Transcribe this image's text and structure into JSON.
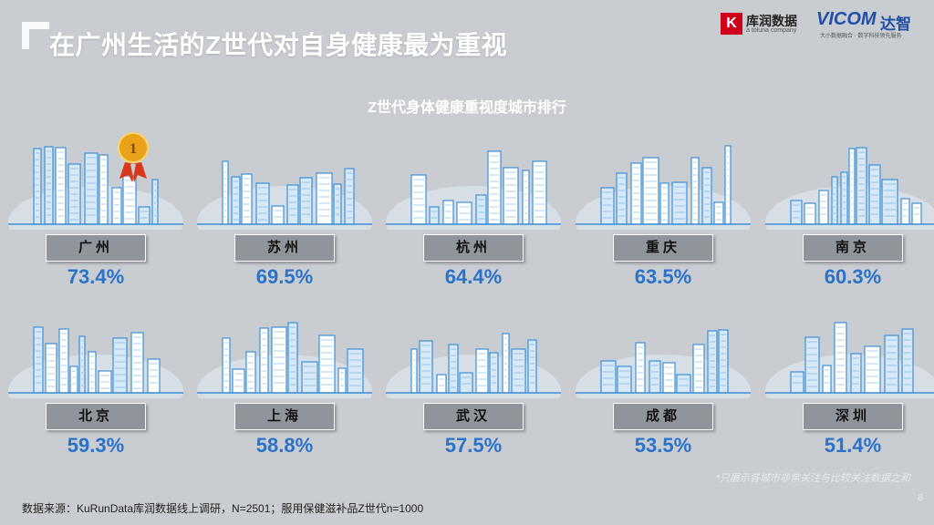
{
  "title": "在广州生活的Z世代对自身健康最为重视",
  "logos": {
    "kurun_mark": "K",
    "kurun_name": "库润数据",
    "kurun_sub": "a toluna company",
    "vicom_brand": "VICOM",
    "vicom_brand2": "达智",
    "vicom_slogan": "大小数据融合 · 数字科技领先服务"
  },
  "chart_data": {
    "type": "bar",
    "title": "Z世代身体健康重视度城市排行",
    "categories": [
      "广州",
      "苏州",
      "杭州",
      "重庆",
      "南京",
      "北京",
      "上海",
      "武汉",
      "成都",
      "深圳"
    ],
    "value_labels": [
      "73.4%",
      "69.5%",
      "64.4%",
      "63.5%",
      "60.3%",
      "59.3%",
      "58.8%",
      "57.5%",
      "53.5%",
      "51.4%"
    ],
    "values": [
      73.4,
      69.5,
      64.4,
      63.5,
      60.3,
      59.3,
      58.8,
      57.5,
      53.5,
      51.4
    ],
    "rank_badge": "1",
    "colors": {
      "value": "#2b72c9",
      "label_bg": "#8f959b",
      "skyline": "#3d8fd6",
      "badge": "#e9a21a"
    }
  },
  "footnote": "*只展示各城市非常关注与比较关注数据之和",
  "source": "数据来源：KuRunData库润数据线上调研，N=2501；服用保健滋补品Z世代n=1000",
  "page_number": "8"
}
